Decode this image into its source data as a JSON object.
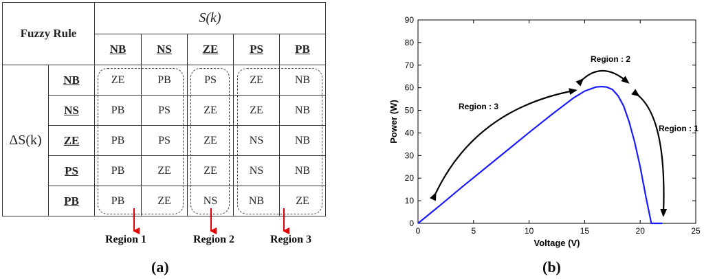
{
  "table": {
    "corner": "Fuzzy Rule",
    "col_header": "S(k)",
    "row_header": "ΔS(k)",
    "columns": [
      "NB",
      "NS",
      "ZE",
      "PS",
      "PB"
    ],
    "rows": [
      {
        "label": "NB",
        "cells": [
          "ZE",
          "PB",
          "PS",
          "ZE",
          "NB"
        ]
      },
      {
        "label": "NS",
        "cells": [
          "PB",
          "PS",
          "ZE",
          "ZE",
          "NB"
        ]
      },
      {
        "label": "ZE",
        "cells": [
          "PB",
          "PS",
          "ZE",
          "NS",
          "NB"
        ]
      },
      {
        "label": "PS",
        "cells": [
          "PB",
          "ZE",
          "ZE",
          "NS",
          "NB"
        ]
      },
      {
        "label": "PB",
        "cells": [
          "PB",
          "ZE",
          "NS",
          "NB",
          "ZE"
        ]
      }
    ],
    "regions": [
      "Region 1",
      "Region 2",
      "Region 3"
    ],
    "caption_a": "(a)"
  },
  "plot": {
    "caption_b": "(b)",
    "region_labels": [
      "Region : 3",
      "Region : 2",
      "Region : 1"
    ]
  },
  "chart_data": {
    "type": "line",
    "title": "",
    "xlabel": "Voltage (V)",
    "ylabel": "Power (W)",
    "xlim": [
      0,
      25
    ],
    "ylim": [
      0,
      90
    ],
    "xticks": [
      0,
      5,
      10,
      15,
      20,
      25
    ],
    "yticks": [
      0,
      10,
      20,
      30,
      40,
      50,
      60,
      70,
      80,
      90
    ],
    "grid": false,
    "line_color": "#1a1aff",
    "series": [
      {
        "x": [
          0,
          2,
          4,
          6,
          8,
          10,
          12,
          14,
          15,
          16,
          16.5,
          17,
          17.5,
          18,
          18.5,
          19,
          19.5,
          20,
          20.5,
          21,
          22
        ],
        "y": [
          0,
          8,
          16.2,
          24.2,
          32.2,
          40.2,
          48,
          55.5,
          58.5,
          60.3,
          60.5,
          60.3,
          59.2,
          56.5,
          52,
          45,
          36,
          25,
          12,
          0,
          0
        ]
      }
    ]
  }
}
